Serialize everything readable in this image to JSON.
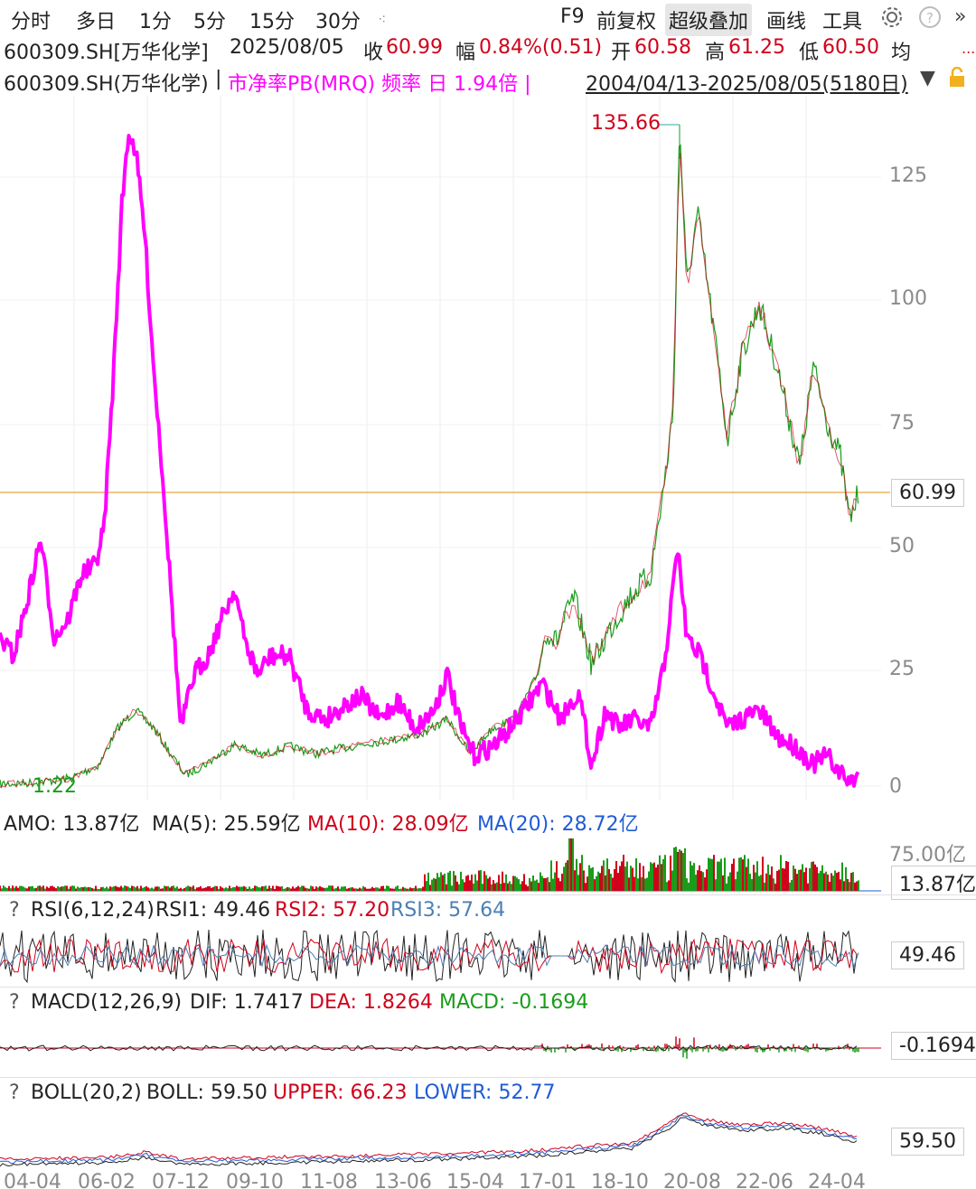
{
  "topbar": {
    "tabs": [
      "分时",
      "多日",
      "1分",
      "5分",
      "15分",
      "30分"
    ],
    "right_items": [
      "F9",
      "前复权",
      "超级叠加",
      "画线",
      "工具"
    ],
    "active_item": "超级叠加",
    "icons": [
      "gear-icon",
      "help-icon",
      "double-chevron-right-icon",
      "dots-icon"
    ]
  },
  "quote": {
    "code": "600309.SH[万华化学]",
    "date": "2025/08/05",
    "close_label": "收",
    "close": "60.99",
    "change_label": "幅",
    "change": "0.84%(0.51)",
    "open_label": "开",
    "open": "60.58",
    "high_label": "高",
    "high": "61.25",
    "low_label": "低",
    "low": "60.50",
    "avg_label": "均",
    "more": "..."
  },
  "overlay": {
    "stock": "600309.SH(万华化学)",
    "sep": "|",
    "pb_text": "市净率PB(MRQ) 频率 日 1.94倍 |",
    "range": "2004/04/13-2025/08/05(5180日)",
    "icons": [
      "dropdown-triangle-icon",
      "lock-icon"
    ]
  },
  "price_panel": {
    "max_label": "135.66",
    "min_label": "1.22",
    "y_ticks": [
      "125",
      "100",
      "75",
      "50",
      "25",
      "0"
    ],
    "last_price_tag": "60.99",
    "last_price_color": "#e8a33a",
    "pb_color": "#ff00ff"
  },
  "amo": {
    "label": "AMO: 13.87亿",
    "ma5": "MA(5): 25.59亿",
    "ma10": "MA(10): 28.09亿",
    "ma20": "MA(20): 28.72亿",
    "axis_label": "75.00亿",
    "tag": "13.87亿"
  },
  "rsi": {
    "q": "?",
    "label": "RSI(6,12,24)",
    "rsi1": "RSI1: 49.46",
    "rsi2": "RSI2: 57.20",
    "rsi3": "RSI3: 57.64",
    "tag": "49.46"
  },
  "macd": {
    "q": "?",
    "label": "MACD(12,26,9)",
    "dif": "DIF: 1.7417",
    "dea": "DEA: 1.8264",
    "macd": "MACD: -0.1694",
    "tag": "-0.1694"
  },
  "boll": {
    "q": "?",
    "label": "BOLL(20,2)",
    "boll": "BOLL: 59.50",
    "upper": "UPPER: 66.23",
    "lower": "LOWER: 52.77",
    "tag": "59.50"
  },
  "x_axis": [
    "04-04",
    "06-02",
    "07-12",
    "09-10",
    "11-08",
    "13-06",
    "15-04",
    "17-01",
    "18-10",
    "20-08",
    "22-06",
    "24-04"
  ]
}
